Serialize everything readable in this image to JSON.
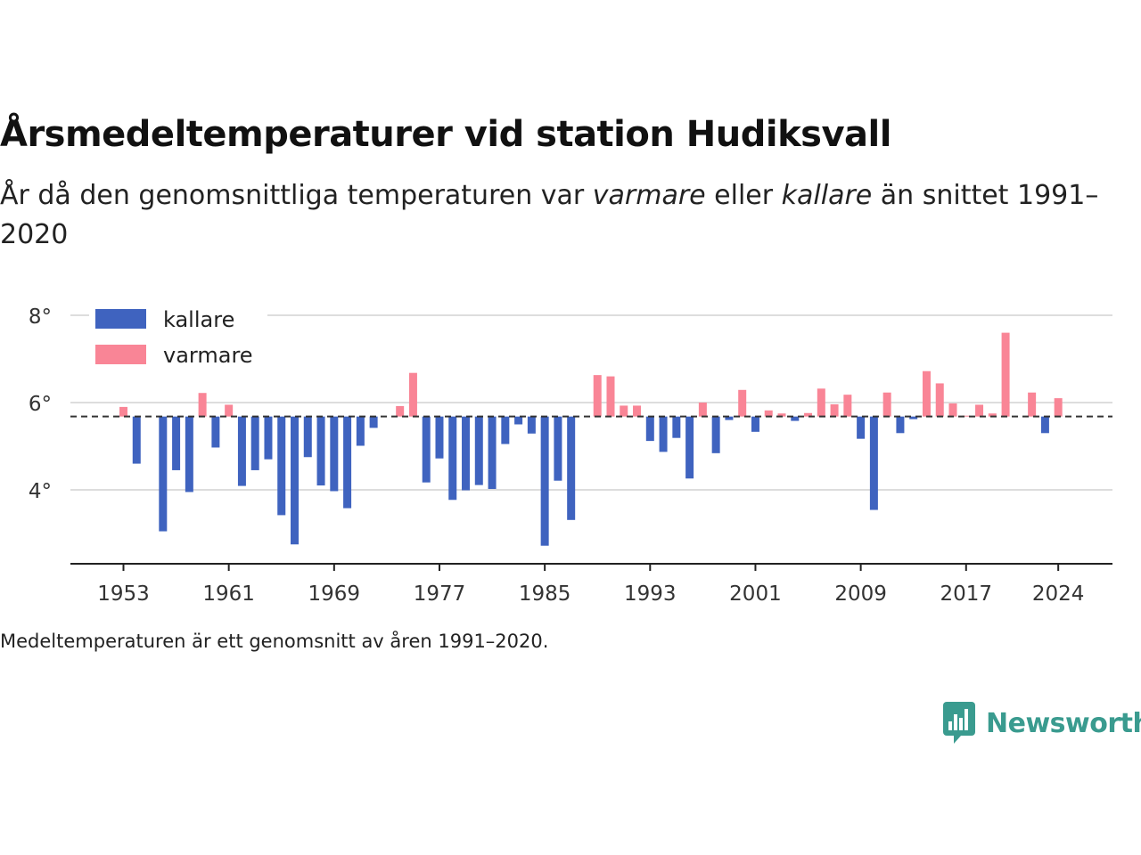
{
  "title": "Årsmedeltemperaturer vid station Hudiksvall",
  "subtitle": {
    "part1": "År då den genomsnittliga temperaturen var ",
    "warm_word": "varmare",
    "part2": " eller ",
    "cold_word": "kallare",
    "part3": " än snittet 1991–2020"
  },
  "note": "Medeltemperaturen är ett genomsnitt av åren 1991–2020.",
  "brand": {
    "name": "Newsworthy",
    "icon": "bar-chart-speech-bubble-icon",
    "color": "#3a9b8f"
  },
  "colors": {
    "kallare": "#3f63bf",
    "varmare": "#f98596",
    "mean_line": "#333333",
    "grid": "#dddddd"
  },
  "chart_data": {
    "type": "bar",
    "baseline": 5.68,
    "baseline_style": "dashed",
    "ylim": [
      2.2,
      8.2
    ],
    "yticks": [
      {
        "value": 4,
        "label": "4°"
      },
      {
        "value": 6,
        "label": "6°"
      },
      {
        "value": 8,
        "label": "8°"
      }
    ],
    "xticks": [
      {
        "year": 1953,
        "label": "1953"
      },
      {
        "year": 1961,
        "label": "1961"
      },
      {
        "year": 1969,
        "label": "1969"
      },
      {
        "year": 1977,
        "label": "1977"
      },
      {
        "year": 1985,
        "label": "1985"
      },
      {
        "year": 1993,
        "label": "1993"
      },
      {
        "year": 2001,
        "label": "2001"
      },
      {
        "year": 2009,
        "label": "2009"
      },
      {
        "year": 2017,
        "label": "2017"
      },
      {
        "year": 2024,
        "label": "2024"
      }
    ],
    "grid": true,
    "legend": {
      "position": "top-left",
      "entries": [
        {
          "key": "kallare",
          "label": "kallare"
        },
        {
          "key": "varmare",
          "label": "varmare"
        }
      ]
    },
    "x": [
      1953,
      1954,
      1955,
      1956,
      1957,
      1958,
      1959,
      1960,
      1961,
      1962,
      1963,
      1964,
      1965,
      1966,
      1967,
      1968,
      1969,
      1970,
      1971,
      1972,
      1973,
      1974,
      1975,
      1976,
      1977,
      1978,
      1979,
      1980,
      1981,
      1982,
      1983,
      1984,
      1985,
      1986,
      1987,
      1988,
      1989,
      1990,
      1991,
      1992,
      1993,
      1994,
      1995,
      1996,
      1997,
      1998,
      1999,
      2000,
      2001,
      2002,
      2003,
      2004,
      2005,
      2006,
      2007,
      2008,
      2009,
      2010,
      2011,
      2012,
      2013,
      2014,
      2015,
      2016,
      2017,
      2018,
      2019,
      2020,
      2021,
      2022,
      2023,
      2024
    ],
    "values": [
      5.9,
      4.6,
      null,
      3.05,
      4.45,
      3.95,
      6.22,
      4.97,
      5.95,
      4.09,
      4.45,
      4.7,
      3.42,
      2.75,
      4.75,
      4.1,
      3.97,
      3.58,
      5.01,
      5.42,
      null,
      5.92,
      6.68,
      4.17,
      4.72,
      3.77,
      3.99,
      4.11,
      4.02,
      5.05,
      5.5,
      5.29,
      2.72,
      4.21,
      3.31,
      null,
      6.63,
      6.6,
      5.93,
      5.93,
      5.12,
      4.87,
      5.19,
      4.26,
      6.0,
      4.84,
      5.6,
      6.29,
      5.33,
      5.82,
      5.75,
      5.58,
      5.76,
      6.32,
      5.96,
      6.18,
      5.17,
      3.54,
      6.23,
      5.3,
      5.62,
      6.72,
      6.44,
      5.98,
      5.7,
      5.95,
      5.75,
      7.6,
      null,
      6.23,
      5.3,
      6.1
    ]
  }
}
